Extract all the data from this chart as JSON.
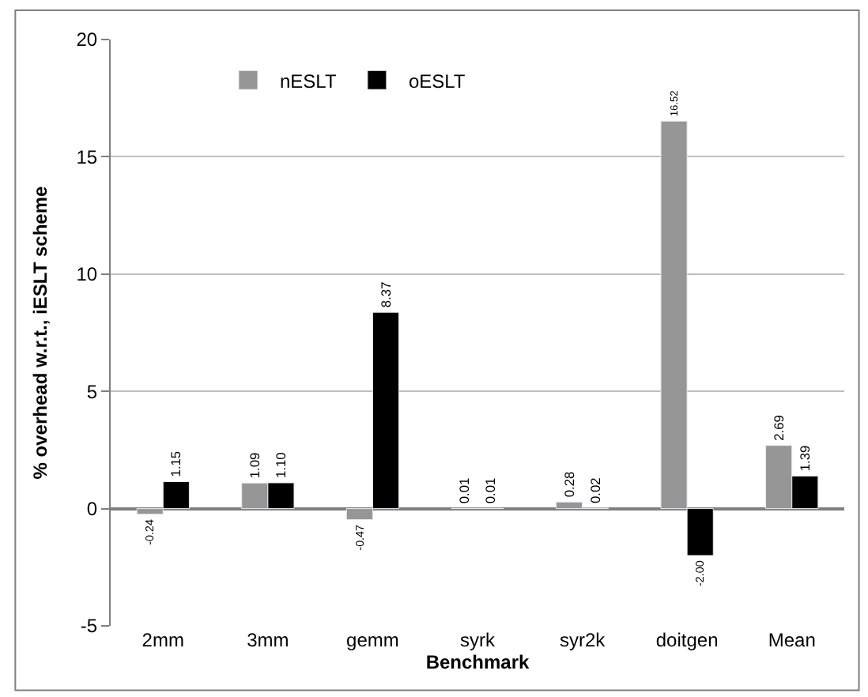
{
  "chart_data": {
    "type": "bar",
    "xlabel": "Benchmark",
    "ylabel": "% overhead w.r.t., iESLT scheme",
    "categories": [
      "2mm",
      "3mm",
      "gemm",
      "syrk",
      "syr2k",
      "doitgen",
      "Mean"
    ],
    "series": [
      {
        "name": "nESLT",
        "color": "#969696",
        "values": [
          -0.24,
          1.09,
          -0.47,
          0.01,
          0.28,
          16.52,
          2.69
        ],
        "value_labels": [
          "-0.24",
          "1.09",
          "-0.47",
          "0.01",
          "0.28",
          "16.52",
          "2.69"
        ]
      },
      {
        "name": "oESLT",
        "color": "#000000",
        "values": [
          1.15,
          1.1,
          8.37,
          0.01,
          0.02,
          -2.0,
          1.39
        ],
        "value_labels": [
          "1.15",
          "1.10",
          "8.37",
          "0.01",
          "0.02",
          "-2.00",
          "1.39"
        ]
      }
    ],
    "ylim": [
      -5,
      20
    ],
    "yticks": [
      -5,
      0,
      5,
      10,
      15,
      20
    ],
    "grid": "y",
    "legend": "top"
  }
}
